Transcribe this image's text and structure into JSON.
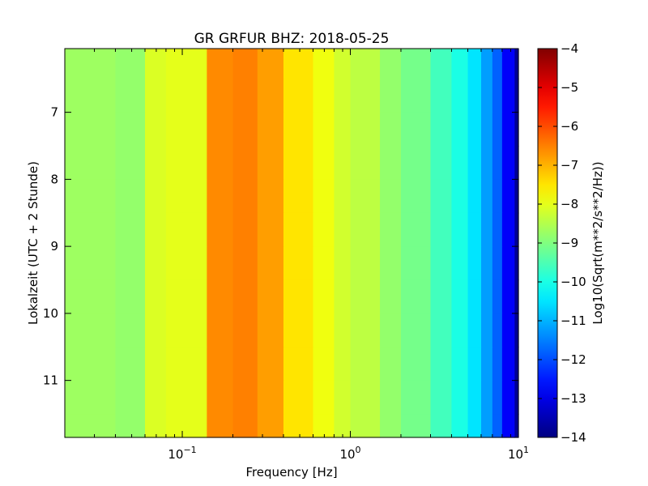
{
  "chart_data": {
    "type": "heatmap",
    "title": "GR GRFUR BHZ: 2018-05-25",
    "xlabel": "Frequency [Hz]",
    "ylabel": "Lokalzeit (UTC + 2 Stunde)",
    "x_scale": "log",
    "xlim": [
      0.02,
      10
    ],
    "ylim": [
      11.85,
      6.05
    ],
    "y_inverted": true,
    "x_ticks": [
      {
        "value": 0.1,
        "base": "10",
        "exp": "−1"
      },
      {
        "value": 1,
        "base": "10",
        "exp": "0"
      },
      {
        "value": 10,
        "base": "10",
        "exp": "1"
      }
    ],
    "y_ticks": [
      7,
      8,
      9,
      10,
      11
    ],
    "colorbar": {
      "label": "Log10(Sqrt(m**2/s**2/Hz))",
      "colormap": "jet",
      "range": [
        -14,
        -4
      ],
      "ticks": [
        "−4",
        "−5",
        "−6",
        "−7",
        "−8",
        "−9",
        "−10",
        "−11",
        "−12",
        "−13",
        "−14"
      ]
    },
    "frequency_bins": [
      0.025,
      0.04,
      0.06,
      0.08,
      0.1,
      0.14,
      0.2,
      0.28,
      0.4,
      0.6,
      0.8,
      1.0,
      1.5,
      2.0,
      3.0,
      4.0,
      5.0,
      6.0,
      7.0,
      8.0,
      9.5
    ],
    "time_bins": [
      6.05,
      6.5,
      7.0,
      7.5,
      8.0,
      8.5,
      9.0,
      9.5,
      10.0,
      10.5,
      11.0,
      11.5,
      11.85
    ],
    "psd_profile": [
      {
        "frequency": 0.025,
        "value": -8.7
      },
      {
        "frequency": 0.04,
        "value": -8.8
      },
      {
        "frequency": 0.06,
        "value": -8.1
      },
      {
        "frequency": 0.08,
        "value": -8.0
      },
      {
        "frequency": 0.1,
        "value": -8.0
      },
      {
        "frequency": 0.14,
        "value": -6.6
      },
      {
        "frequency": 0.2,
        "value": -6.5
      },
      {
        "frequency": 0.28,
        "value": -6.8
      },
      {
        "frequency": 0.4,
        "value": -7.5
      },
      {
        "frequency": 0.6,
        "value": -7.9
      },
      {
        "frequency": 0.8,
        "value": -8.2
      },
      {
        "frequency": 1.0,
        "value": -8.4
      },
      {
        "frequency": 1.5,
        "value": -8.8
      },
      {
        "frequency": 2.0,
        "value": -9.1
      },
      {
        "frequency": 3.0,
        "value": -9.6
      },
      {
        "frequency": 4.0,
        "value": -10.0
      },
      {
        "frequency": 5.0,
        "value": -10.5
      },
      {
        "frequency": 6.0,
        "value": -11.2
      },
      {
        "frequency": 7.0,
        "value": -11.8
      },
      {
        "frequency": 8.0,
        "value": -12.8
      },
      {
        "frequency": 9.5,
        "value": -13.8
      }
    ]
  }
}
